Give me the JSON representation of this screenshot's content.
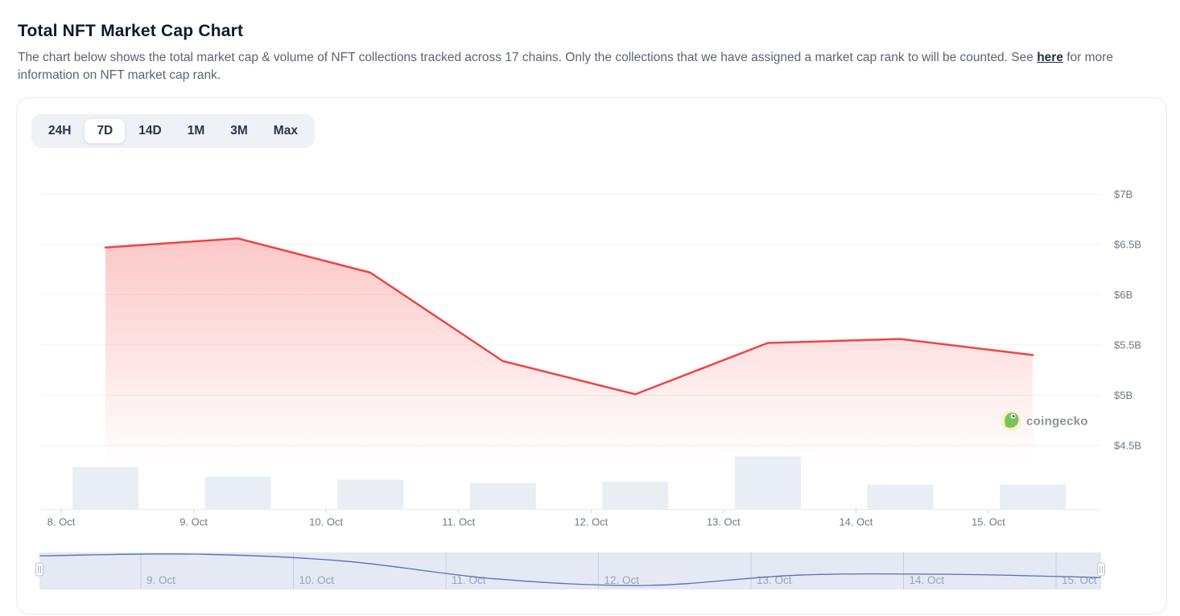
{
  "header": {
    "title": "Total NFT Market Cap Chart",
    "description_before_link": "The chart below shows the total market cap & volume of NFT collections tracked across 17 chains. Only the collections that we have assigned a market cap rank to will be counted. See ",
    "link_text": "here",
    "description_after_link": " for more information on NFT market cap rank."
  },
  "toolbar": {
    "ranges": [
      "24H",
      "7D",
      "14D",
      "1M",
      "3M",
      "Max"
    ],
    "selected": "7D"
  },
  "watermark": {
    "text": "coingecko"
  },
  "colors": {
    "line_red": "#f04444",
    "area_red": "#f44343",
    "volume_bar": "#e9edf4",
    "grid": "#f0f2f6",
    "axis_line": "#e8ebf0",
    "tick": "#ccd2db",
    "navigator_band": "#dbe2f0",
    "navigator_grid": "#bfc9dd",
    "navigator_line": "#5372b8",
    "handle_border": "#b7c1d0"
  },
  "chart_data": {
    "type": "area",
    "title": "Total NFT Market Cap",
    "categories": [
      "8. Oct",
      "9. Oct",
      "10. Oct",
      "11. Oct",
      "12. Oct",
      "13. Oct",
      "14. Oct",
      "15. Oct"
    ],
    "series": [
      {
        "name": "NFT Market Cap",
        "type": "area",
        "unit": "USD billions",
        "values": [
          6.47,
          6.56,
          6.22,
          5.34,
          5.01,
          5.52,
          5.56,
          5.4
        ]
      },
      {
        "name": "Volume",
        "type": "bar",
        "unit": "relative (no axis shown)",
        "values": [
          0.8,
          0.62,
          0.56,
          0.5,
          0.52,
          1.0,
          0.47,
          0.47
        ]
      }
    ],
    "xlabel": "",
    "ylabel": "",
    "yaxis": {
      "position": "right",
      "tick_labels": [
        "$7B",
        "$6.5B",
        "$6B",
        "$5.5B",
        "$5B",
        "$4.5B"
      ],
      "tick_values": [
        7,
        6.5,
        6,
        5.5,
        5,
        4.5
      ]
    },
    "ylim": [
      4.3,
      7.2
    ],
    "grid": "horizontal",
    "legend": "none",
    "navigator": {
      "labels": [
        "9. Oct",
        "10. Oct",
        "11. Oct",
        "12. Oct",
        "13. Oct",
        "14. Oct",
        "15. Oct"
      ],
      "series": "NFT Market Cap (smoothed preview)"
    }
  }
}
